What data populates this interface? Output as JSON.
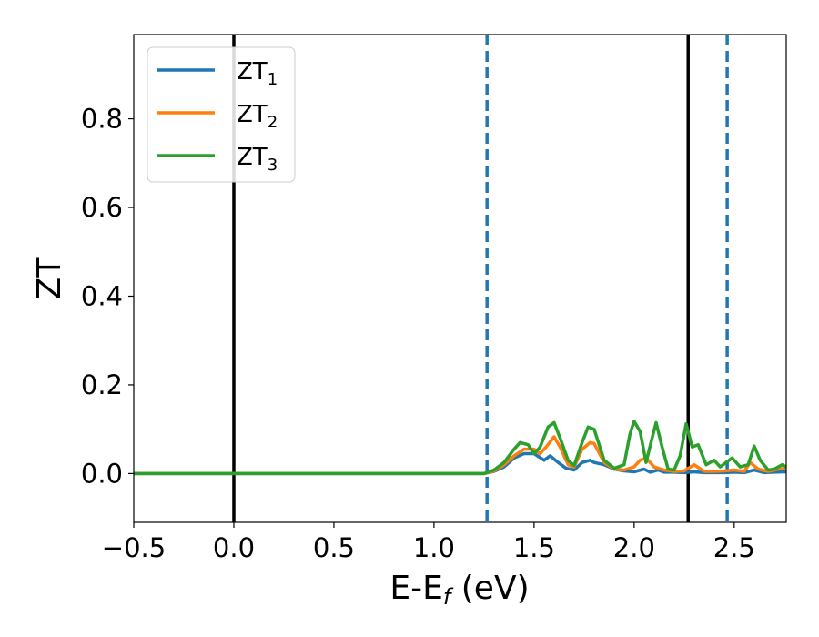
{
  "chart_data": {
    "type": "line",
    "xlabel": "E-E",
    "xlabel_sub": "f",
    "xlabel_unit": " (eV)",
    "ylabel": "ZT",
    "xlim": [
      -0.5,
      2.76
    ],
    "ylim": [
      -0.11,
      0.99
    ],
    "xticks": [
      -0.5,
      0.0,
      0.5,
      1.0,
      1.5,
      2.0,
      2.5
    ],
    "xtick_labels": [
      "−0.5",
      "0.0",
      "0.5",
      "1.0",
      "1.5",
      "2.0",
      "2.5"
    ],
    "yticks": [
      0.0,
      0.2,
      0.4,
      0.6,
      0.8
    ],
    "ytick_labels": [
      "0.0",
      "0.2",
      "0.4",
      "0.6",
      "0.8"
    ],
    "grid": false,
    "legend_position": "top-left",
    "vlines": [
      {
        "x": 0.0,
        "style": "solid",
        "color": "#000000"
      },
      {
        "x": 2.27,
        "style": "solid",
        "color": "#000000"
      },
      {
        "x": 1.265,
        "style": "dashed",
        "color": "#1f77b4"
      },
      {
        "x": 2.465,
        "style": "dashed",
        "color": "#1f77b4"
      }
    ],
    "series": [
      {
        "name": "ZT",
        "name_sub": "1",
        "color": "#1f77b4",
        "points": [
          [
            -0.5,
            0
          ],
          [
            1.25,
            0
          ],
          [
            1.3,
            0.005
          ],
          [
            1.35,
            0.015
          ],
          [
            1.4,
            0.035
          ],
          [
            1.45,
            0.045
          ],
          [
            1.5,
            0.045
          ],
          [
            1.55,
            0.03
          ],
          [
            1.58,
            0.04
          ],
          [
            1.62,
            0.025
          ],
          [
            1.66,
            0.012
          ],
          [
            1.7,
            0.008
          ],
          [
            1.74,
            0.025
          ],
          [
            1.78,
            0.03
          ],
          [
            1.8,
            0.025
          ],
          [
            1.85,
            0.02
          ],
          [
            1.9,
            0.01
          ],
          [
            1.95,
            0.006
          ],
          [
            2.0,
            0.004
          ],
          [
            2.05,
            0.01
          ],
          [
            2.08,
            0.003
          ],
          [
            2.12,
            0.008
          ],
          [
            2.15,
            0.003
          ],
          [
            2.2,
            0.003
          ],
          [
            2.25,
            0.002
          ],
          [
            2.3,
            0.004
          ],
          [
            2.35,
            0.002
          ],
          [
            2.4,
            0.002
          ],
          [
            2.45,
            0.002
          ],
          [
            2.5,
            0.003
          ],
          [
            2.55,
            0.002
          ],
          [
            2.6,
            0.008
          ],
          [
            2.65,
            0.002
          ],
          [
            2.7,
            0.003
          ],
          [
            2.76,
            0.004
          ]
        ]
      },
      {
        "name": "ZT",
        "name_sub": "2",
        "color": "#ff7f0e",
        "points": [
          [
            -0.5,
            0
          ],
          [
            1.25,
            0
          ],
          [
            1.3,
            0.006
          ],
          [
            1.35,
            0.02
          ],
          [
            1.4,
            0.04
          ],
          [
            1.45,
            0.055
          ],
          [
            1.5,
            0.055
          ],
          [
            1.53,
            0.045
          ],
          [
            1.56,
            0.06
          ],
          [
            1.6,
            0.083
          ],
          [
            1.63,
            0.06
          ],
          [
            1.67,
            0.02
          ],
          [
            1.7,
            0.015
          ],
          [
            1.74,
            0.055
          ],
          [
            1.78,
            0.07
          ],
          [
            1.8,
            0.068
          ],
          [
            1.85,
            0.025
          ],
          [
            1.9,
            0.01
          ],
          [
            1.95,
            0.008
          ],
          [
            2.0,
            0.015
          ],
          [
            2.03,
            0.03
          ],
          [
            2.06,
            0.035
          ],
          [
            2.1,
            0.015
          ],
          [
            2.15,
            0.008
          ],
          [
            2.2,
            0.005
          ],
          [
            2.25,
            0.006
          ],
          [
            2.3,
            0.02
          ],
          [
            2.35,
            0.005
          ],
          [
            2.4,
            0.005
          ],
          [
            2.45,
            0.006
          ],
          [
            2.5,
            0.008
          ],
          [
            2.55,
            0.005
          ],
          [
            2.58,
            0.025
          ],
          [
            2.62,
            0.01
          ],
          [
            2.67,
            0.005
          ],
          [
            2.72,
            0.01
          ],
          [
            2.76,
            0.012
          ]
        ]
      },
      {
        "name": "ZT",
        "name_sub": "3",
        "color": "#2ca02c",
        "points": [
          [
            -0.5,
            0
          ],
          [
            1.25,
            0
          ],
          [
            1.3,
            0.008
          ],
          [
            1.35,
            0.025
          ],
          [
            1.4,
            0.055
          ],
          [
            1.43,
            0.07
          ],
          [
            1.47,
            0.065
          ],
          [
            1.5,
            0.045
          ],
          [
            1.53,
            0.06
          ],
          [
            1.57,
            0.105
          ],
          [
            1.6,
            0.115
          ],
          [
            1.63,
            0.08
          ],
          [
            1.67,
            0.03
          ],
          [
            1.7,
            0.018
          ],
          [
            1.74,
            0.07
          ],
          [
            1.77,
            0.105
          ],
          [
            1.8,
            0.1
          ],
          [
            1.85,
            0.03
          ],
          [
            1.9,
            0.012
          ],
          [
            1.95,
            0.02
          ],
          [
            1.98,
            0.09
          ],
          [
            2.0,
            0.118
          ],
          [
            2.03,
            0.095
          ],
          [
            2.06,
            0.025
          ],
          [
            2.09,
            0.08
          ],
          [
            2.11,
            0.115
          ],
          [
            2.14,
            0.06
          ],
          [
            2.17,
            0.01
          ],
          [
            2.2,
            0.008
          ],
          [
            2.23,
            0.04
          ],
          [
            2.26,
            0.112
          ],
          [
            2.29,
            0.06
          ],
          [
            2.32,
            0.065
          ],
          [
            2.36,
            0.02
          ],
          [
            2.4,
            0.03
          ],
          [
            2.43,
            0.015
          ],
          [
            2.46,
            0.025
          ],
          [
            2.49,
            0.035
          ],
          [
            2.53,
            0.015
          ],
          [
            2.57,
            0.02
          ],
          [
            2.6,
            0.062
          ],
          [
            2.63,
            0.03
          ],
          [
            2.67,
            0.008
          ],
          [
            2.7,
            0.01
          ],
          [
            2.74,
            0.02
          ],
          [
            2.76,
            0.015
          ]
        ]
      }
    ]
  }
}
